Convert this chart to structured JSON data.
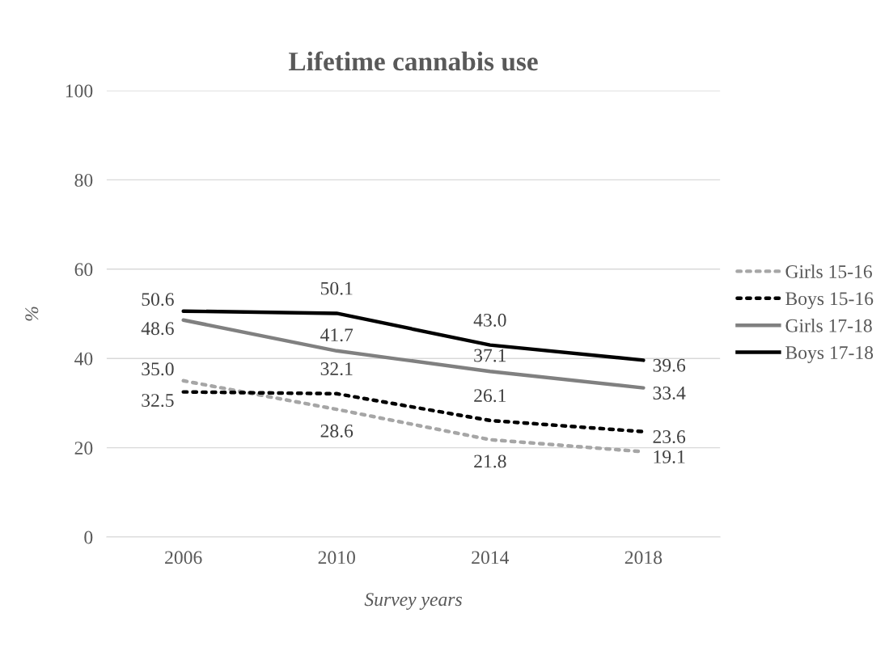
{
  "chart_data": {
    "type": "line",
    "title": "Lifetime cannabis use",
    "xlabel": "Survey years",
    "ylabel": "%",
    "categories": [
      "2006",
      "2010",
      "2014",
      "2018"
    ],
    "series": [
      {
        "name": "Girls 15-16",
        "color": "#a6a6a6",
        "line_style": "dotted",
        "values": [
          35.0,
          28.6,
          21.8,
          19.1
        ],
        "value_labels": [
          "35.0",
          "28.6",
          "21.8",
          "19.1"
        ]
      },
      {
        "name": "Boys 15-16",
        "color": "#000000",
        "line_style": "dotted",
        "values": [
          32.5,
          32.1,
          26.1,
          23.6
        ],
        "value_labels": [
          "32.5",
          "32.1",
          "26.1",
          "23.6"
        ]
      },
      {
        "name": "Girls 17-18",
        "color": "#808080",
        "line_style": "solid",
        "values": [
          48.6,
          41.7,
          37.1,
          33.4
        ],
        "value_labels": [
          "48.6",
          "41.7",
          "37.1",
          "33.4"
        ]
      },
      {
        "name": "Boys 17-18",
        "color": "#000000",
        "line_style": "solid",
        "values": [
          50.6,
          50.1,
          43.0,
          39.6
        ],
        "value_labels": [
          "50.6",
          "50.1",
          "43.0",
          "39.6"
        ]
      }
    ],
    "ylim": [
      0,
      100
    ],
    "yticks": [
      0,
      20,
      40,
      60,
      80,
      100
    ],
    "grid": "y",
    "legend": "right",
    "marker": "none"
  }
}
